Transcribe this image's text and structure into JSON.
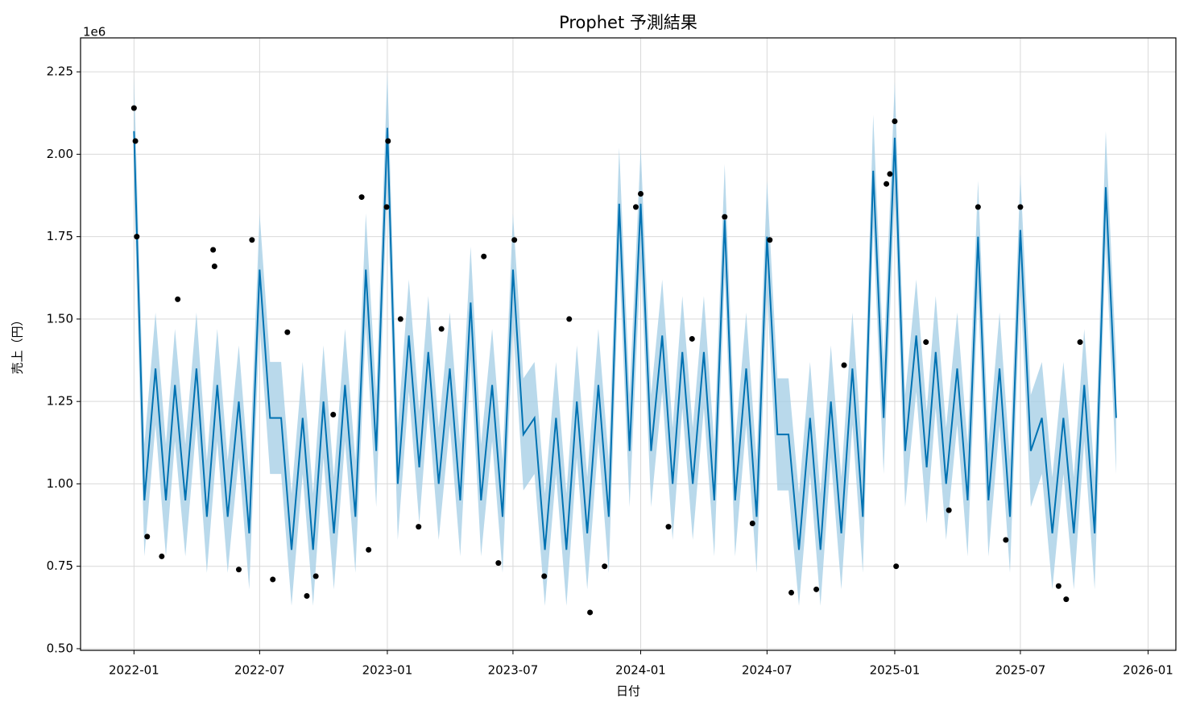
{
  "chart_data": {
    "type": "line",
    "title": "Prophet 予測結果",
    "x_label": "日付",
    "y_label": "売上（円）",
    "y_offset_label": "1e6",
    "grid": true,
    "xlim": [
      "2021-10-16",
      "2026-02-10"
    ],
    "xticks": [
      "2022-01",
      "2022-07",
      "2023-01",
      "2023-07",
      "2024-01",
      "2024-07",
      "2025-01",
      "2025-07",
      "2026-01"
    ],
    "ylim": [
      0.495,
      2.353
    ],
    "yticks": [
      {
        "value": 0.5,
        "label": "0.50"
      },
      {
        "value": 0.75,
        "label": "0.75"
      },
      {
        "value": 1,
        "label": "1.00"
      },
      {
        "value": 1.25,
        "label": "1.25"
      },
      {
        "value": 1.5,
        "label": "1.50"
      },
      {
        "value": 1.75,
        "label": "1.75"
      },
      {
        "value": 2,
        "label": "2.00"
      },
      {
        "value": 2.25,
        "label": "2.25"
      }
    ],
    "x": [
      "2022-01-01",
      "2022-01-16",
      "2022-02-01",
      "2022-02-16",
      "2022-03-01",
      "2022-03-16",
      "2022-04-01",
      "2022-04-16",
      "2022-05-01",
      "2022-05-16",
      "2022-06-01",
      "2022-06-16",
      "2022-07-01",
      "2022-07-16",
      "2022-08-01",
      "2022-08-16",
      "2022-09-01",
      "2022-09-16",
      "2022-10-01",
      "2022-10-16",
      "2022-11-01",
      "2022-11-16",
      "2022-12-01",
      "2022-12-16",
      "2023-01-01",
      "2023-01-16",
      "2023-02-01",
      "2023-02-16",
      "2023-03-01",
      "2023-03-16",
      "2023-04-01",
      "2023-04-16",
      "2023-05-01",
      "2023-05-16",
      "2023-06-01",
      "2023-06-16",
      "2023-07-01",
      "2023-07-16",
      "2023-08-01",
      "2023-08-16",
      "2023-09-01",
      "2023-09-16",
      "2023-10-01",
      "2023-10-16",
      "2023-11-01",
      "2023-11-16",
      "2023-12-01",
      "2023-12-16",
      "2024-01-01",
      "2024-01-16",
      "2024-02-01",
      "2024-02-16",
      "2024-03-01",
      "2024-03-16",
      "2024-04-01",
      "2024-04-16",
      "2024-05-01",
      "2024-05-16",
      "2024-06-01",
      "2024-06-16",
      "2024-07-01",
      "2024-07-16",
      "2024-08-01",
      "2024-08-16",
      "2024-09-01",
      "2024-09-16",
      "2024-10-01",
      "2024-10-16",
      "2024-11-01",
      "2024-11-16",
      "2024-12-01",
      "2024-12-16",
      "2025-01-01",
      "2025-01-16",
      "2025-02-01",
      "2025-02-16",
      "2025-03-01",
      "2025-03-16",
      "2025-04-01",
      "2025-04-16",
      "2025-05-01",
      "2025-05-16",
      "2025-06-01",
      "2025-06-16",
      "2025-07-01",
      "2025-07-16",
      "2025-08-01",
      "2025-08-16",
      "2025-09-01",
      "2025-09-16",
      "2025-10-01",
      "2025-10-16",
      "2025-11-01",
      "2025-11-16"
    ],
    "series": [
      {
        "color": "#0072B2",
        "values": [
          2.07,
          0.95,
          1.35,
          0.95,
          1.3,
          0.95,
          1.35,
          0.9,
          1.3,
          0.9,
          1.25,
          0.85,
          1.65,
          1.2,
          1.2,
          0.8,
          1.2,
          0.8,
          1.25,
          0.85,
          1.3,
          0.9,
          1.65,
          1.1,
          2.08,
          1.0,
          1.45,
          1.05,
          1.4,
          1.0,
          1.35,
          0.95,
          1.55,
          0.95,
          1.3,
          0.9,
          1.65,
          1.15,
          1.2,
          0.8,
          1.2,
          0.8,
          1.25,
          0.85,
          1.3,
          0.9,
          1.85,
          1.1,
          1.85,
          1.1,
          1.45,
          1.0,
          1.4,
          1.0,
          1.4,
          0.95,
          1.8,
          0.95,
          1.35,
          0.9,
          1.75,
          1.15,
          1.15,
          0.8,
          1.2,
          0.8,
          1.25,
          0.85,
          1.35,
          0.9,
          1.95,
          1.2,
          2.05,
          1.1,
          1.45,
          1.05,
          1.4,
          1.0,
          1.35,
          0.95,
          1.75,
          0.95,
          1.35,
          0.9,
          1.77,
          1.1,
          1.2,
          0.85,
          1.2,
          0.85,
          1.3,
          0.85,
          1.9,
          1.2
        ]
      }
    ],
    "band": {
      "color": "#a8d0e6",
      "upper": [
        2.24,
        1.12,
        1.52,
        1.12,
        1.47,
        1.12,
        1.52,
        1.07,
        1.47,
        1.07,
        1.42,
        1.02,
        1.82,
        1.37,
        1.37,
        0.97,
        1.37,
        0.97,
        1.42,
        1.02,
        1.47,
        1.07,
        1.82,
        1.27,
        2.25,
        1.17,
        1.62,
        1.22,
        1.57,
        1.17,
        1.52,
        1.12,
        1.72,
        1.12,
        1.47,
        1.07,
        1.82,
        1.32,
        1.37,
        0.97,
        1.37,
        0.97,
        1.42,
        1.02,
        1.47,
        1.07,
        2.02,
        1.27,
        2.02,
        1.27,
        1.62,
        1.17,
        1.57,
        1.17,
        1.57,
        1.12,
        1.97,
        1.12,
        1.52,
        1.07,
        1.92,
        1.32,
        1.32,
        0.97,
        1.37,
        0.97,
        1.42,
        1.02,
        1.52,
        1.07,
        2.12,
        1.37,
        2.22,
        1.27,
        1.62,
        1.22,
        1.57,
        1.17,
        1.52,
        1.12,
        1.92,
        1.12,
        1.52,
        1.07,
        1.94,
        1.27,
        1.37,
        1.02,
        1.37,
        1.02,
        1.47,
        1.02,
        2.07,
        1.37
      ],
      "lower": [
        1.9,
        0.78,
        1.18,
        0.78,
        1.13,
        0.78,
        1.18,
        0.73,
        1.13,
        0.73,
        1.08,
        0.68,
        1.48,
        1.03,
        1.03,
        0.63,
        1.03,
        0.63,
        1.08,
        0.68,
        1.13,
        0.73,
        1.48,
        0.93,
        1.91,
        0.83,
        1.28,
        0.88,
        1.23,
        0.83,
        1.18,
        0.78,
        1.38,
        0.78,
        1.13,
        0.73,
        1.48,
        0.98,
        1.03,
        0.63,
        1.03,
        0.63,
        1.08,
        0.68,
        1.13,
        0.73,
        1.68,
        0.93,
        1.68,
        0.93,
        1.28,
        0.83,
        1.23,
        0.83,
        1.23,
        0.78,
        1.63,
        0.78,
        1.18,
        0.73,
        1.58,
        0.98,
        0.98,
        0.63,
        1.03,
        0.63,
        1.08,
        0.68,
        1.18,
        0.73,
        1.78,
        1.03,
        1.88,
        0.93,
        1.28,
        0.88,
        1.23,
        0.83,
        1.18,
        0.78,
        1.58,
        0.78,
        1.18,
        0.73,
        1.6,
        0.93,
        1.03,
        0.68,
        1.03,
        0.68,
        1.13,
        0.68,
        1.73,
        1.03
      ]
    },
    "points": {
      "color": "#000000",
      "x": [
        "2022-01-01",
        "2022-01-03",
        "2022-01-05",
        "2022-01-20",
        "2022-02-10",
        "2022-03-05",
        "2022-04-25",
        "2022-04-27",
        "2022-06-01",
        "2022-06-20",
        "2022-07-20",
        "2022-08-10",
        "2022-09-07",
        "2022-09-20",
        "2022-10-15",
        "2022-11-25",
        "2022-12-05",
        "2022-12-31",
        "2023-01-02",
        "2023-01-20",
        "2023-02-15",
        "2023-03-20",
        "2023-05-20",
        "2023-06-10",
        "2023-07-03",
        "2023-08-15",
        "2023-09-20",
        "2023-10-20",
        "2023-11-10",
        "2023-12-25",
        "2024-01-01",
        "2024-02-10",
        "2024-03-15",
        "2024-05-01",
        "2024-06-10",
        "2024-07-05",
        "2024-08-05",
        "2024-09-10",
        "2024-10-20",
        "2024-12-20",
        "2024-12-25",
        "2025-01-01",
        "2025-01-03",
        "2025-02-15",
        "2025-03-20",
        "2025-05-01",
        "2025-06-10",
        "2025-07-01",
        "2025-08-25",
        "2025-09-05",
        "2025-09-25"
      ],
      "y": [
        2.14,
        2.04,
        1.75,
        0.84,
        0.78,
        1.56,
        1.71,
        1.66,
        0.74,
        1.74,
        0.71,
        1.46,
        0.66,
        0.72,
        1.21,
        1.87,
        0.8,
        1.84,
        2.04,
        1.5,
        0.87,
        1.47,
        1.69,
        0.76,
        1.74,
        0.72,
        1.5,
        0.61,
        0.75,
        1.84,
        1.88,
        0.87,
        1.44,
        1.81,
        0.88,
        1.74,
        0.67,
        0.68,
        1.36,
        1.91,
        1.94,
        2.1,
        0.75,
        1.43,
        0.92,
        1.84,
        0.83,
        1.84,
        0.69,
        0.65,
        1.43
      ]
    }
  }
}
